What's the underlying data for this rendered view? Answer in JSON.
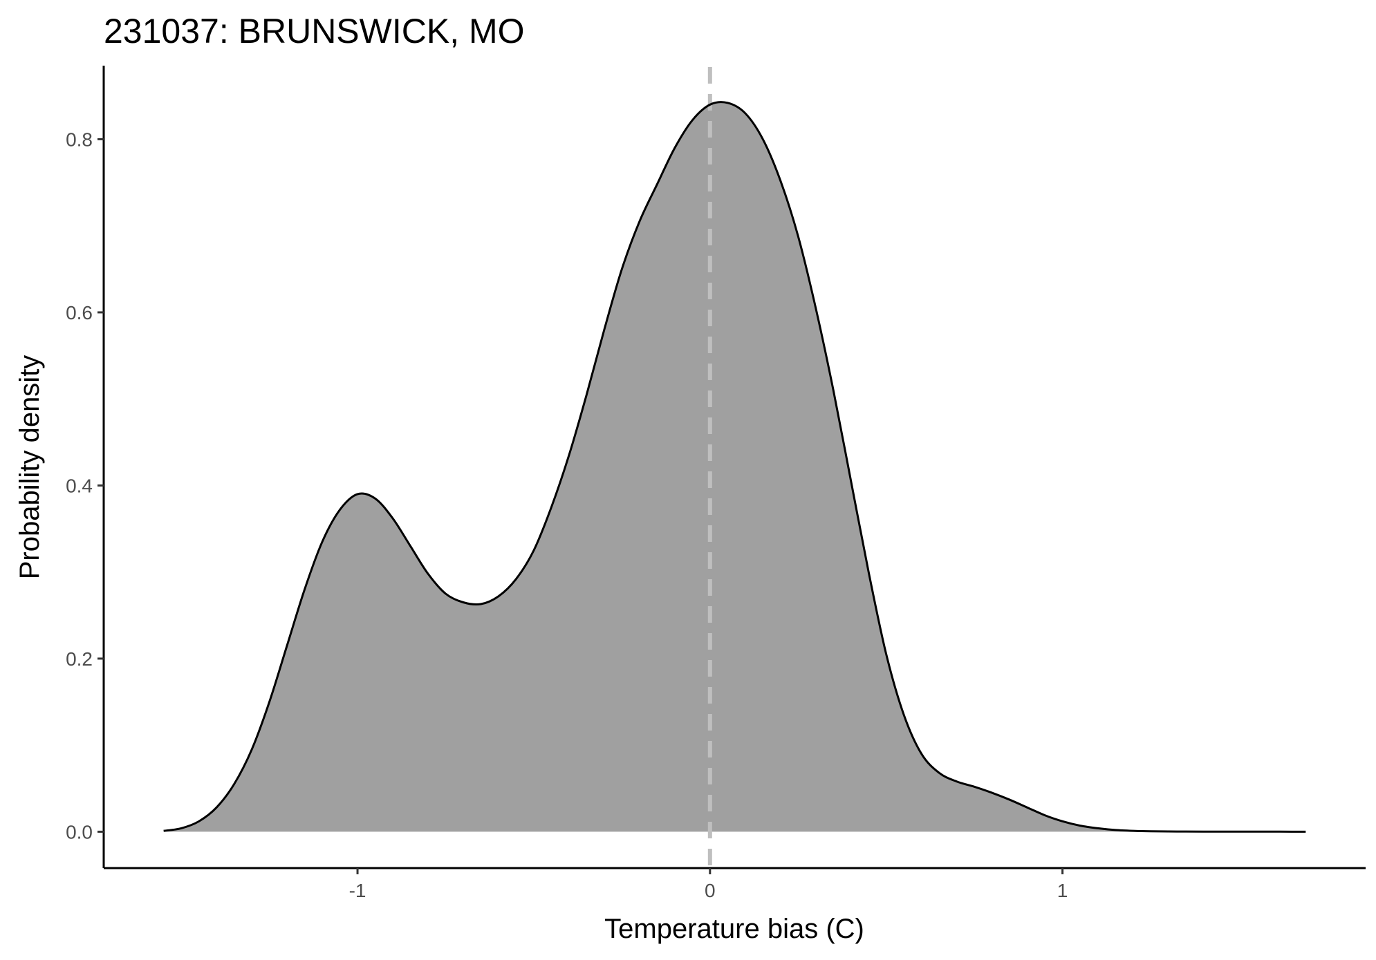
{
  "chart_data": {
    "type": "area",
    "title": "231037: BRUNSWICK, MO",
    "xlabel": "Temperature bias (C)",
    "ylabel": "Probability density",
    "xlim": [
      -1.72,
      1.86
    ],
    "ylim": [
      -0.042,
      0.885
    ],
    "x_ticks": [
      -1,
      0,
      1
    ],
    "x_tick_labels": [
      "-1",
      "0",
      "1"
    ],
    "y_ticks": [
      0.0,
      0.2,
      0.4,
      0.6,
      0.8
    ],
    "y_tick_labels": [
      "0.0",
      "0.2",
      "0.4",
      "0.6",
      "0.8"
    ],
    "grid": false,
    "legend": "none",
    "reference_line": {
      "x": 0,
      "style": "dashed",
      "color": "#bfbfbf"
    },
    "fill_color": "#a0a0a0",
    "line_color": "#000000",
    "series": [
      {
        "x": [
          -1.55,
          -1.5,
          -1.45,
          -1.4,
          -1.35,
          -1.3,
          -1.25,
          -1.2,
          -1.15,
          -1.1,
          -1.05,
          -1.0,
          -0.95,
          -0.9,
          -0.85,
          -0.8,
          -0.75,
          -0.7,
          -0.65,
          -0.6,
          -0.55,
          -0.5,
          -0.45,
          -0.4,
          -0.35,
          -0.3,
          -0.25,
          -0.2,
          -0.15,
          -0.1,
          -0.05,
          0.0,
          0.05,
          0.1,
          0.15,
          0.2,
          0.25,
          0.3,
          0.35,
          0.4,
          0.45,
          0.5,
          0.55,
          0.6,
          0.65,
          0.7,
          0.75,
          0.8,
          0.85,
          0.9,
          0.95,
          1.0,
          1.05,
          1.1,
          1.15,
          1.2,
          1.25,
          1.3,
          1.35,
          1.4,
          1.45,
          1.5,
          1.55,
          1.6,
          1.65,
          1.69
        ],
        "y": [
          0.001,
          0.004,
          0.012,
          0.028,
          0.055,
          0.095,
          0.15,
          0.215,
          0.28,
          0.335,
          0.372,
          0.39,
          0.385,
          0.362,
          0.33,
          0.298,
          0.275,
          0.265,
          0.263,
          0.272,
          0.292,
          0.325,
          0.375,
          0.435,
          0.505,
          0.58,
          0.65,
          0.705,
          0.748,
          0.79,
          0.822,
          0.84,
          0.842,
          0.83,
          0.8,
          0.752,
          0.688,
          0.605,
          0.51,
          0.405,
          0.3,
          0.205,
          0.135,
          0.09,
          0.068,
          0.058,
          0.052,
          0.045,
          0.037,
          0.028,
          0.019,
          0.012,
          0.007,
          0.004,
          0.002,
          0.001,
          0.0005,
          0.0003,
          0.0002,
          0.0001,
          0.0001,
          0.0001,
          0.0001,
          0.0001,
          0.0,
          0.0
        ]
      }
    ]
  }
}
